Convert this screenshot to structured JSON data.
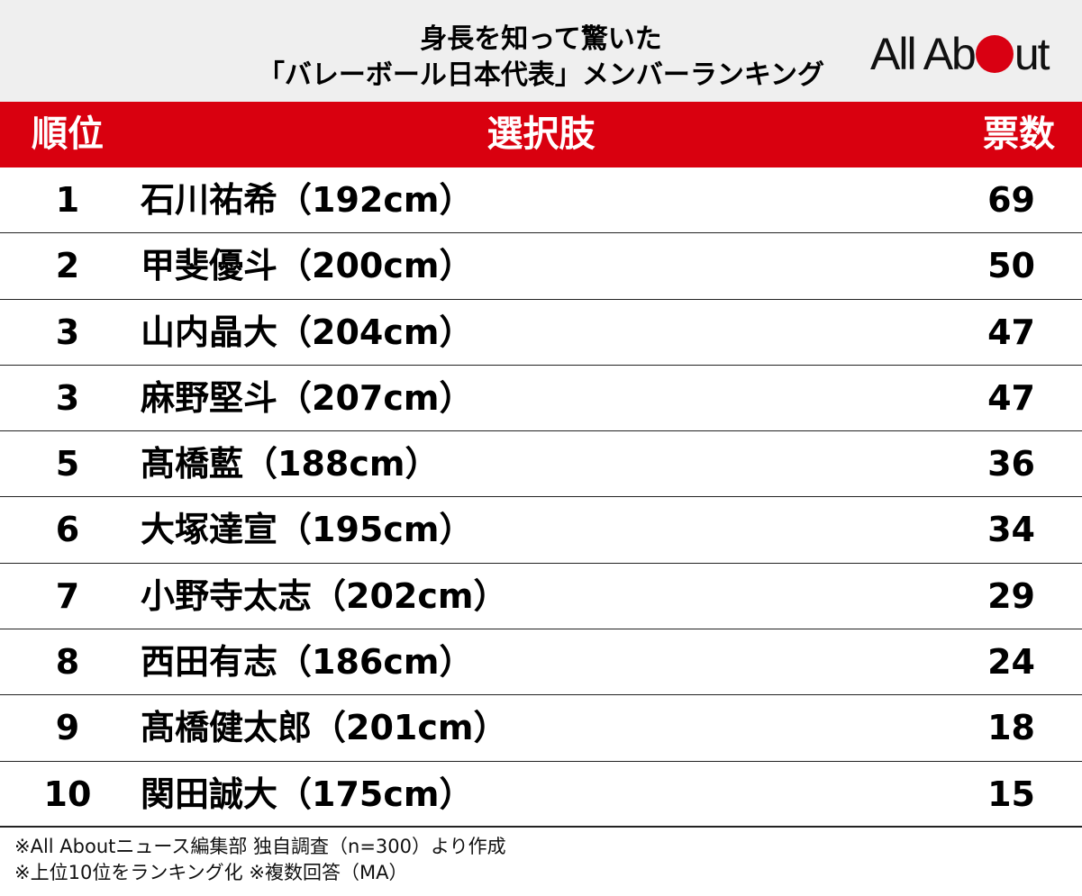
{
  "header": {
    "title_line1": "身長を知って驚いた",
    "title_line2": "「バレーボール日本代表」メンバーランキング",
    "logo": "All About",
    "logo_color": "#d90012"
  },
  "table": {
    "headers": {
      "rank": "順位",
      "choice": "選択肢",
      "votes": "票数"
    },
    "header_color": "#d9000f",
    "rows": [
      {
        "rank": "1",
        "name": "石川祐希（192cm）",
        "votes": "69"
      },
      {
        "rank": "2",
        "name": "甲斐優斗（200cm）",
        "votes": "50"
      },
      {
        "rank": "3",
        "name": "山内晶大（204cm）",
        "votes": "47"
      },
      {
        "rank": "3",
        "name": "麻野堅斗（207cm）",
        "votes": "47"
      },
      {
        "rank": "5",
        "name": "髙橋藍（188cm）",
        "votes": "36"
      },
      {
        "rank": "6",
        "name": "大塚達宣（195cm）",
        "votes": "34"
      },
      {
        "rank": "7",
        "name": "小野寺太志（202cm）",
        "votes": "29"
      },
      {
        "rank": "8",
        "name": "西田有志（186cm）",
        "votes": "24"
      },
      {
        "rank": "9",
        "name": "髙橋健太郎（201cm）",
        "votes": "18"
      },
      {
        "rank": "10",
        "name": "関田誠大（175cm）",
        "votes": "15"
      }
    ]
  },
  "notes": {
    "line1": "※All Aboutニュース編集部 独自調査（n=300）より作成",
    "line2": "※上位10位をランキング化 ※複数回答（MA）"
  }
}
